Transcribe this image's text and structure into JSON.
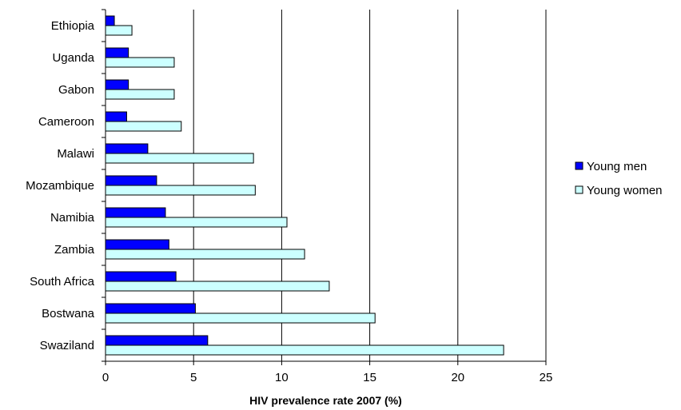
{
  "chart_data": {
    "type": "bar",
    "orientation": "horizontal",
    "categories": [
      "Ethiopia",
      "Uganda",
      "Gabon",
      "Cameroon",
      "Malawi",
      "Mozambique",
      "Namibia",
      "Zambia",
      "South Africa",
      "Bostwana",
      "Swaziland"
    ],
    "series": [
      {
        "name": "Young men",
        "color": "#0000ff",
        "values": [
          0.5,
          1.3,
          1.3,
          1.2,
          2.4,
          2.9,
          3.4,
          3.6,
          4.0,
          5.1,
          5.8
        ]
      },
      {
        "name": "Young women",
        "color": "#ccffff",
        "values": [
          1.5,
          3.9,
          3.9,
          4.3,
          8.4,
          8.5,
          10.3,
          11.3,
          12.7,
          15.3,
          22.6
        ]
      }
    ],
    "title": "",
    "xlabel": "HIV prevalence rate 2007 (%)",
    "ylabel": "",
    "xlim": [
      0,
      25
    ],
    "xticks": [
      "0",
      "5",
      "10",
      "15",
      "20",
      "25"
    ],
    "grid": "vertical",
    "legend": "right"
  }
}
